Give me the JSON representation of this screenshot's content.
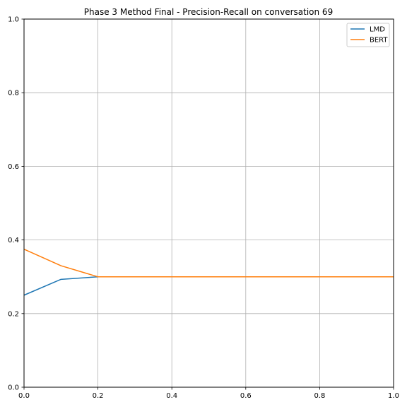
{
  "chart_data": {
    "type": "line",
    "title": "Phase 3 Method Final - Precision-Recall on conversation 69",
    "xlabel": "",
    "ylabel": "",
    "xlim": [
      0.0,
      1.0
    ],
    "ylim": [
      0.0,
      1.0
    ],
    "xticks": [
      0.0,
      0.2,
      0.4,
      0.6,
      0.8,
      1.0
    ],
    "yticks": [
      0.0,
      0.2,
      0.4,
      0.6,
      0.8,
      1.0
    ],
    "xtick_labels": [
      "0.0",
      "0.2",
      "0.4",
      "0.6",
      "0.8",
      "1.0"
    ],
    "ytick_labels": [
      "0.0",
      "0.2",
      "0.4",
      "0.6",
      "0.8",
      "1.0"
    ],
    "grid": true,
    "legend_position": "top-right",
    "series": [
      {
        "name": "LMD",
        "color": "#1f77b4",
        "x": [
          0.0,
          0.1,
          0.2,
          0.3,
          0.4,
          0.5,
          0.6,
          0.7,
          0.8,
          0.9,
          1.0
        ],
        "y": [
          0.25,
          0.293,
          0.3,
          0.3,
          0.3,
          0.3,
          0.3,
          0.3,
          0.3,
          0.3,
          0.3
        ]
      },
      {
        "name": "BERT",
        "color": "#ff7f0e",
        "x": [
          0.0,
          0.1,
          0.2,
          0.3,
          0.4,
          0.5,
          0.6,
          0.7,
          0.8,
          0.9,
          1.0
        ],
        "y": [
          0.375,
          0.33,
          0.3,
          0.3,
          0.3,
          0.3,
          0.3,
          0.3,
          0.3,
          0.3,
          0.3
        ]
      }
    ]
  }
}
